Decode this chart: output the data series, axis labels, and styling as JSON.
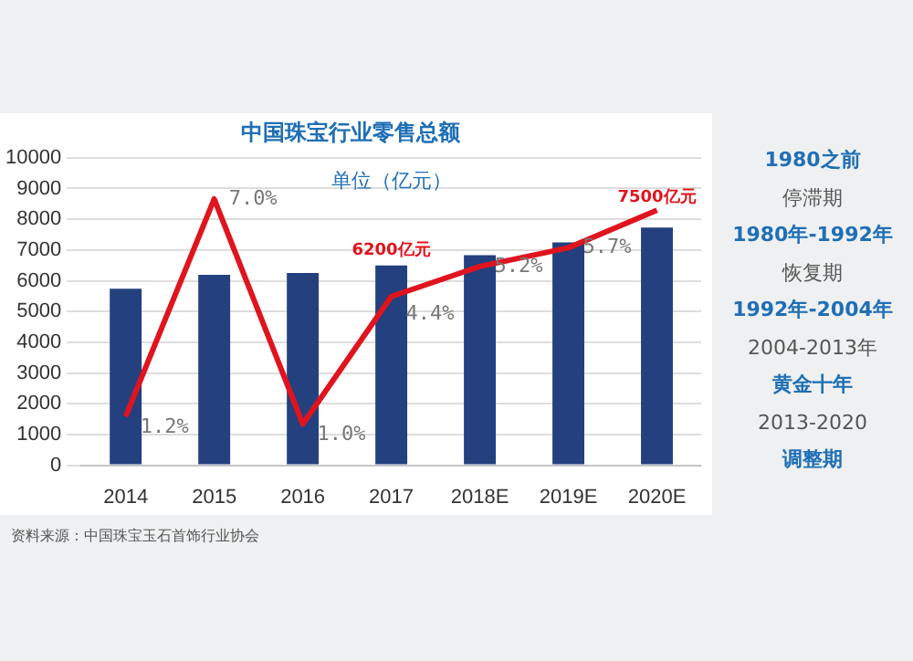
{
  "chart_data": {
    "type": "bar",
    "title": "中国珠宝行业零售总额",
    "subtitle": "单位（亿元）",
    "categories": [
      "2014",
      "2015",
      "2016",
      "2017",
      "2018E",
      "2019E",
      "2020E"
    ],
    "series": [
      {
        "color": "#24407e",
        "values": [
          5740,
          6190,
          6250,
          6500,
          6830,
          7250,
          7730
        ]
      },
      {
        "type": "line",
        "color": "#e0141e",
        "axis": "y2",
        "values": [
          1.2,
          7.0,
          1.0,
          4.4,
          5.2,
          5.7,
          6.7
        ],
        "value_labels": [
          "1.2%",
          "7.0%",
          "1.0%",
          "4.4%",
          "5.2%",
          "5.7%",
          null
        ]
      }
    ],
    "ylim": [
      0,
      10000
    ],
    "yticks": [
      0,
      1000,
      2000,
      3000,
      4000,
      5000,
      6000,
      7000,
      8000,
      9000,
      10000
    ],
    "y2lim": [
      -0.1,
      8.1
    ],
    "grid": "y",
    "legend": false,
    "marker": "none",
    "annotations": [
      "6200亿元",
      "7500亿元",
      "资料来源：中国珠宝玉石首饰行业协会",
      "1980之前",
      "停滞期",
      "1980年-1992年",
      "恢复期",
      "1992年-2004年",
      "2004-2013年",
      "黄金十年",
      "2013-2020",
      "调整期"
    ]
  }
}
